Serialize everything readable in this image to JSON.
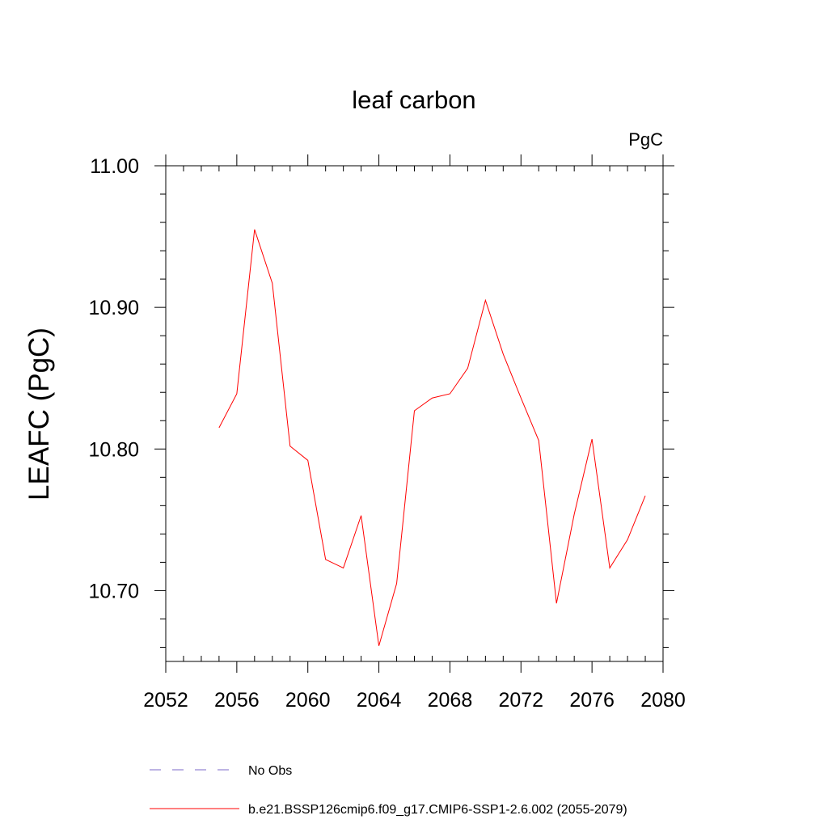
{
  "chart_data": {
    "type": "line",
    "title": "leaf carbon",
    "units_label": "PgC",
    "ylabel": "LEAFC  (PgC)",
    "xlabel": "",
    "xlim": [
      2052,
      2080
    ],
    "ylim": [
      10.65,
      11.0
    ],
    "x_ticks": [
      2052,
      2056,
      2060,
      2064,
      2068,
      2072,
      2076,
      2080
    ],
    "x_tick_labels": [
      "2052",
      "2056",
      "2060",
      "2064",
      "2068",
      "2072",
      "2076",
      "2080"
    ],
    "y_ticks": [
      10.7,
      10.8,
      10.9,
      11.0
    ],
    "y_tick_labels": [
      "10.70",
      "10.80",
      "10.90",
      "11.00"
    ],
    "x_minor_step": 1,
    "y_minor_step": 0.02,
    "grid": false,
    "legend_position": "bottom",
    "series": [
      {
        "name": "b.e21.BSSP126cmip6.f09_g17.CMIP6-SSP1-2.6.002 (2055-2079)",
        "color": "#ff0000",
        "dash": "solid",
        "x": [
          2055,
          2056,
          2057,
          2058,
          2059,
          2060,
          2061,
          2062,
          2063,
          2064,
          2065,
          2066,
          2067,
          2068,
          2069,
          2070,
          2071,
          2072,
          2073,
          2074,
          2075,
          2076,
          2077,
          2078,
          2079
        ],
        "y": [
          10.815,
          10.839,
          10.955,
          10.917,
          10.802,
          10.792,
          10.722,
          10.716,
          10.753,
          10.661,
          10.705,
          10.827,
          10.836,
          10.839,
          10.857,
          10.905,
          10.867,
          10.836,
          10.806,
          10.691,
          10.754,
          10.807,
          10.716,
          10.736,
          10.767
        ]
      }
    ],
    "legend": [
      {
        "name": "No Obs",
        "color": "#7b68c8",
        "dash": "dashed"
      },
      {
        "name": "b.e21.BSSP126cmip6.f09_g17.CMIP6-SSP1-2.6.002 (2055-2079)",
        "color": "#ff0000",
        "dash": "solid"
      }
    ]
  }
}
